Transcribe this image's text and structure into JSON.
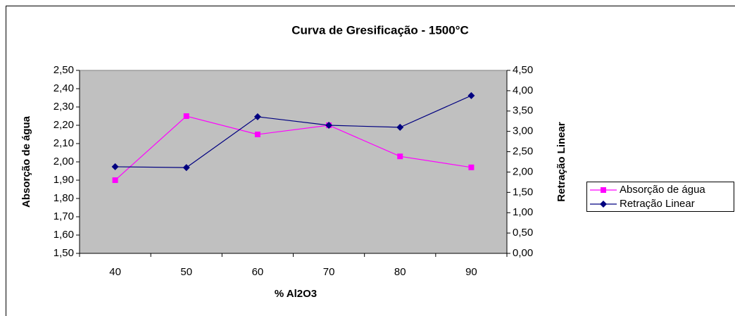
{
  "chart_data": {
    "type": "line",
    "title": "Curva de Gresificação - 1500°C",
    "x_label": "% Al2O3",
    "y_label": "Absorção de água",
    "y2_label": "Retração Linear",
    "categories": [
      "40",
      "50",
      "60",
      "70",
      "80",
      "90"
    ],
    "series": [
      {
        "name": "Absorção de água",
        "color": "#ff00ff",
        "marker": "square",
        "values": [
          1.9,
          2.25,
          2.15,
          2.2,
          2.03,
          1.97
        ]
      },
      {
        "name": "Retração Linear",
        "color": "#000080",
        "marker": "diamond",
        "axis": "y2",
        "values": [
          2.13,
          2.11,
          3.36,
          3.15,
          3.1,
          3.88
        ]
      }
    ],
    "ylim": [
      1.5,
      2.5
    ],
    "yticks": [
      {
        "value": 1.5,
        "label": "1,50"
      },
      {
        "value": 1.6,
        "label": "1,60"
      },
      {
        "value": 1.7,
        "label": "1,70"
      },
      {
        "value": 1.8,
        "label": "1,80"
      },
      {
        "value": 1.9,
        "label": "1,90"
      },
      {
        "value": 2.0,
        "label": "2,00"
      },
      {
        "value": 2.1,
        "label": "2,10"
      },
      {
        "value": 2.2,
        "label": "2,20"
      },
      {
        "value": 2.3,
        "label": "2,30"
      },
      {
        "value": 2.4,
        "label": "2,40"
      },
      {
        "value": 2.5,
        "label": "2,50"
      }
    ],
    "y2lim": [
      0,
      4.5
    ],
    "y2ticks": [
      {
        "value": 0,
        "label": "0,00"
      },
      {
        "value": 0.5,
        "label": "0,50"
      },
      {
        "value": 1.0,
        "label": "1,00"
      },
      {
        "value": 1.5,
        "label": "1,50"
      },
      {
        "value": 2.0,
        "label": "2,00"
      },
      {
        "value": 2.5,
        "label": "2,50"
      },
      {
        "value": 3.0,
        "label": "3,00"
      },
      {
        "value": 3.5,
        "label": "3,50"
      },
      {
        "value": 4.0,
        "label": "4,00"
      },
      {
        "value": 4.5,
        "label": "4,50"
      }
    ],
    "plot_background": "#c0c0c0",
    "legend": "right"
  }
}
